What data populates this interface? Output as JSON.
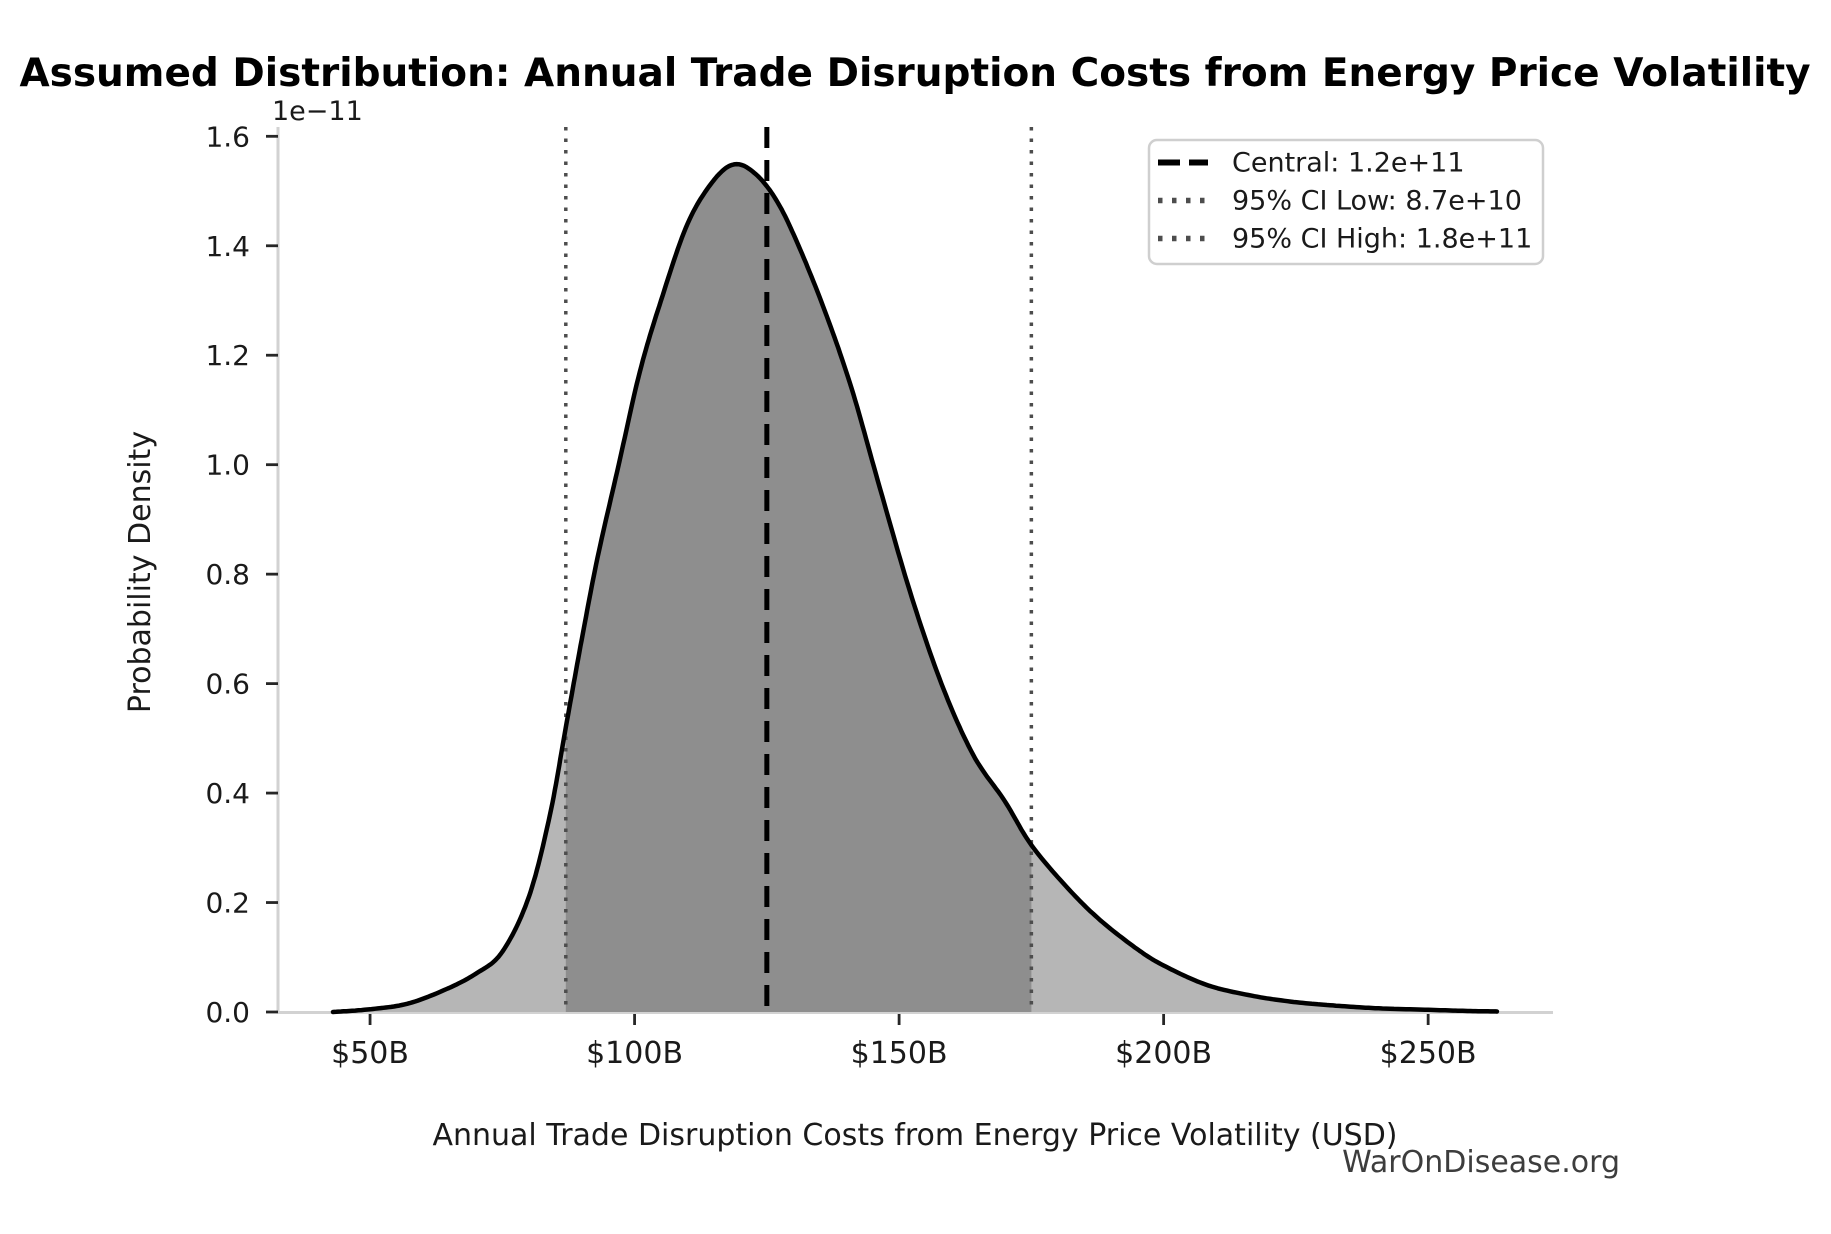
{
  "watermark": "WarOnDisease.org",
  "chart_data": {
    "type": "area",
    "title": "Assumed Distribution: Annual Trade Disruption Costs from Energy Price Volatility",
    "xlabel": "Annual Trade Disruption Costs from Energy Price Volatility (USD)",
    "ylabel": "Probability Density",
    "y_scale_offset_label": "1e−11",
    "x_unit": "billions_usd",
    "xlim": [
      32.6,
      273.6
    ],
    "ylim": [
      0,
      1.617
    ],
    "grid": false,
    "legend_position": "upper right",
    "x_ticks": [
      {
        "v": 50,
        "label": "$50B"
      },
      {
        "v": 100,
        "label": "$100B"
      },
      {
        "v": 150,
        "label": "$150B"
      },
      {
        "v": 200,
        "label": "$200B"
      },
      {
        "v": 250,
        "label": "$250B"
      }
    ],
    "y_ticks": [
      {
        "v": 0.0,
        "label": "0.0"
      },
      {
        "v": 0.2,
        "label": "0.2"
      },
      {
        "v": 0.4,
        "label": "0.4"
      },
      {
        "v": 0.6,
        "label": "0.6"
      },
      {
        "v": 0.8,
        "label": "0.8"
      },
      {
        "v": 1.0,
        "label": "1.0"
      },
      {
        "v": 1.2,
        "label": "1.2"
      },
      {
        "v": 1.4,
        "label": "1.4"
      },
      {
        "v": 1.6,
        "label": "1.6"
      }
    ],
    "curve": {
      "color": "#000000",
      "x_billions": [
        43,
        50,
        57,
        64,
        70,
        75,
        80,
        84,
        87,
        90,
        93,
        97,
        101,
        105,
        110,
        115,
        119,
        123,
        127,
        131,
        136,
        141,
        146,
        152,
        158,
        164,
        170,
        175,
        182,
        188,
        195,
        200,
        208,
        216,
        224,
        232,
        240,
        250,
        257,
        263
      ],
      "density_1e11": [
        0,
        0.005,
        0.015,
        0.04,
        0.07,
        0.11,
        0.21,
        0.36,
        0.52,
        0.68,
        0.83,
        1.0,
        1.17,
        1.3,
        1.44,
        1.52,
        1.549,
        1.53,
        1.48,
        1.4,
        1.28,
        1.14,
        0.97,
        0.77,
        0.6,
        0.47,
        0.385,
        0.305,
        0.225,
        0.168,
        0.115,
        0.085,
        0.05,
        0.031,
        0.019,
        0.012,
        0.007,
        0.004,
        0.002,
        0.001
      ]
    },
    "fills": {
      "full_range_billions": [
        43,
        263
      ],
      "full_color": "#b6b6b6",
      "ci_range_billions": [
        87,
        175
      ],
      "ci_color": "#8e8e8e"
    },
    "lines": [
      {
        "name": "central",
        "x_billions": 125,
        "style": "dashed",
        "color": "#000000",
        "legend_label": "Central: 1.2e+11"
      },
      {
        "name": "ci_low",
        "x_billions": 87,
        "style": "dotted",
        "color": "#4d4d4d",
        "legend_label": "95% CI Low: 8.7e+10"
      },
      {
        "name": "ci_high",
        "x_billions": 175,
        "style": "dotted",
        "color": "#4d4d4d",
        "legend_label": "95% CI High: 1.8e+11"
      }
    ]
  }
}
